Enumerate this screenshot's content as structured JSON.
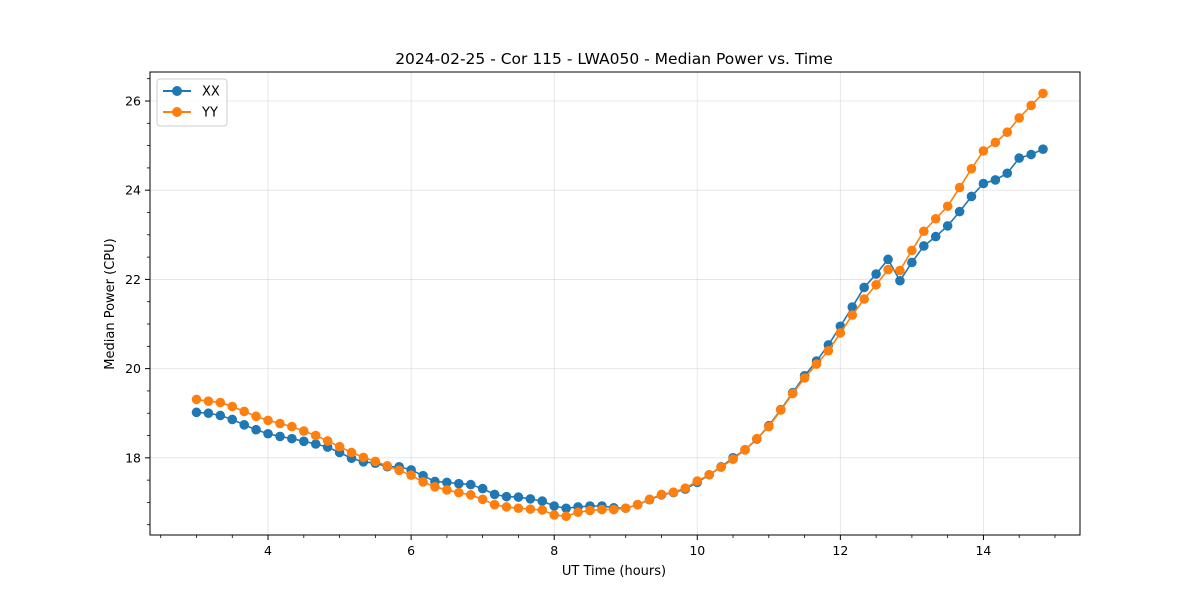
{
  "chart_data": {
    "type": "line",
    "title": "2024-02-25 - Cor 115 - LWA050 - Median Power vs. Time",
    "xlabel": "UT Time (hours)",
    "ylabel": "Median Power (CPU)",
    "xlim": [
      2.35,
      15.35
    ],
    "ylim": [
      16.27,
      26.65
    ],
    "xticks": [
      4,
      6,
      8,
      10,
      12,
      14
    ],
    "yticks": [
      18,
      20,
      22,
      24,
      26
    ],
    "xtick_labels": [
      "4",
      "6",
      "8",
      "10",
      "12",
      "14"
    ],
    "ytick_labels": [
      "18",
      "20",
      "22",
      "24",
      "26"
    ],
    "grid": true,
    "legend": "top-left",
    "x": [
      3.0,
      3.167,
      3.333,
      3.5,
      3.667,
      3.833,
      4.0,
      4.167,
      4.333,
      4.5,
      4.667,
      4.833,
      5.0,
      5.167,
      5.333,
      5.5,
      5.667,
      5.833,
      6.0,
      6.167,
      6.333,
      6.5,
      6.667,
      6.833,
      7.0,
      7.167,
      7.333,
      7.5,
      7.667,
      7.833,
      8.0,
      8.167,
      8.333,
      8.5,
      8.667,
      8.833,
      9.0,
      9.167,
      9.333,
      9.5,
      9.667,
      9.833,
      10.0,
      10.167,
      10.333,
      10.5,
      10.667,
      10.833,
      11.0,
      11.167,
      11.333,
      11.5,
      11.667,
      11.833,
      12.0,
      12.167,
      12.333,
      12.5,
      12.667,
      12.833,
      13.0,
      13.167,
      13.333,
      13.5,
      13.667,
      13.833,
      14.0,
      14.167,
      14.333,
      14.5,
      14.667,
      14.833
    ],
    "series": [
      {
        "name": "XX",
        "color": "#1f77b4",
        "values": [
          19.02,
          19.0,
          18.95,
          18.86,
          18.74,
          18.63,
          18.54,
          18.48,
          18.43,
          18.37,
          18.31,
          18.24,
          18.12,
          17.99,
          17.91,
          17.88,
          17.8,
          17.8,
          17.73,
          17.6,
          17.47,
          17.45,
          17.42,
          17.4,
          17.31,
          17.18,
          17.13,
          17.12,
          17.08,
          17.03,
          16.92,
          16.87,
          16.9,
          16.92,
          16.92,
          16.88,
          16.87,
          16.95,
          17.06,
          17.17,
          17.22,
          17.3,
          17.45,
          17.62,
          17.8,
          18.0,
          18.18,
          18.42,
          18.72,
          19.08,
          19.46,
          19.84,
          20.17,
          20.53,
          20.95,
          21.38,
          21.82,
          22.12,
          22.45,
          21.97,
          22.38,
          22.75,
          22.96,
          23.2,
          23.52,
          23.86,
          24.15,
          24.23,
          24.38,
          24.72,
          24.8,
          24.92
        ]
      },
      {
        "name": "YY",
        "color": "#ff7f0e",
        "values": [
          19.31,
          19.27,
          19.24,
          19.15,
          19.04,
          18.93,
          18.84,
          18.77,
          18.7,
          18.6,
          18.5,
          18.38,
          18.25,
          18.12,
          18.01,
          17.92,
          17.82,
          17.72,
          17.61,
          17.46,
          17.35,
          17.28,
          17.22,
          17.17,
          17.07,
          16.95,
          16.9,
          16.87,
          16.85,
          16.83,
          16.72,
          16.69,
          16.78,
          16.82,
          16.84,
          16.84,
          16.87,
          16.95,
          17.07,
          17.18,
          17.23,
          17.32,
          17.48,
          17.62,
          17.79,
          17.97,
          18.18,
          18.43,
          18.7,
          19.07,
          19.44,
          19.79,
          20.1,
          20.4,
          20.8,
          21.2,
          21.56,
          21.88,
          22.22,
          22.2,
          22.65,
          23.08,
          23.36,
          23.64,
          24.06,
          24.48,
          24.88,
          25.07,
          25.3,
          25.62,
          25.9,
          26.17
        ]
      }
    ]
  }
}
